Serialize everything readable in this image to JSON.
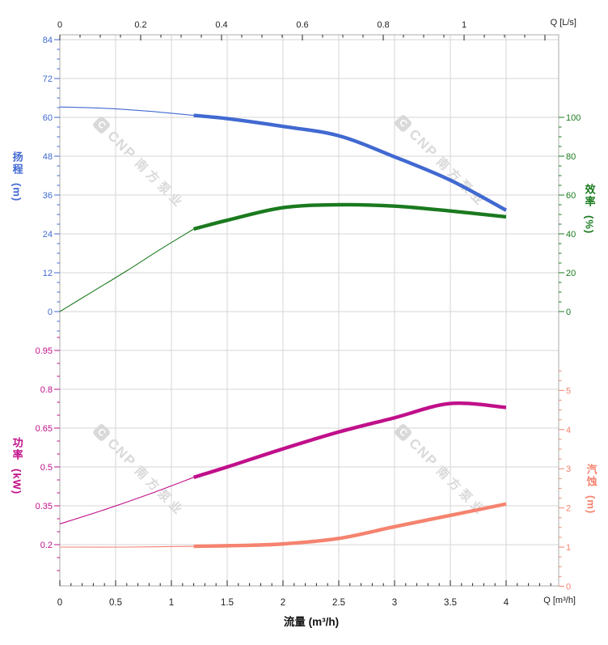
{
  "watermark": {
    "logo_letter": "C",
    "brand": "CNP",
    "company": "南方泵业"
  },
  "colors": {
    "head": "#4169d1",
    "efficiency": "#1a7a1e",
    "power": "#c0108a",
    "npsh": "#f5836f",
    "grid": "#d6d6d6",
    "border": "#ababab",
    "axis_text": "#222222",
    "watermark": "#d9d9d9"
  },
  "axes": {
    "flow_ls": {
      "title": "Q [L/s]",
      "majors": [
        0,
        0.2,
        0.4,
        0.6,
        0.8,
        1,
        1.2
      ],
      "labels": [
        "0",
        "0.2",
        "0.4",
        "0.6",
        "0.8",
        "1"
      ],
      "minor_step": 0.05,
      "minor_range": [
        0,
        1.2
      ]
    },
    "flow_m3h": {
      "title": "Q [m³/h]",
      "caption": "流量 (m³/h)",
      "majors": [
        0,
        0.5,
        1,
        1.5,
        2,
        2.5,
        3,
        3.5,
        4
      ],
      "labels": [
        "0",
        "0.5",
        "1",
        "1.5",
        "2",
        "2.5",
        "3",
        "3.5",
        "4"
      ],
      "minor_step": 0.1,
      "minor_range": [
        0,
        4.4
      ]
    },
    "head": {
      "label": "扬程",
      "unit": "(m)",
      "majors": [
        84,
        72,
        60,
        48,
        36,
        24,
        12,
        0
      ],
      "labels": [
        "84",
        "72",
        "60",
        "48",
        "36",
        "24",
        "12",
        "0"
      ],
      "minor_step": 3,
      "minor_range": [
        -6,
        84
      ]
    },
    "efficiency": {
      "label": "效率",
      "unit": "(%)",
      "majors": [
        100,
        80,
        60,
        40,
        20,
        0
      ],
      "labels": [
        "100",
        "80",
        "60",
        "40",
        "20",
        "0"
      ],
      "minor_step": 5,
      "minor_range": [
        0,
        100
      ]
    },
    "power": {
      "label": "功率",
      "unit": "(kW)",
      "majors": [
        0.95,
        0.8,
        0.65,
        0.5,
        0.35,
        0.2
      ],
      "labels": [
        "0.95",
        "0.8",
        "0.65",
        "0.5",
        "0.35",
        "0.2"
      ],
      "minor_step": 0.05,
      "minor_range": [
        0.1,
        1
      ]
    },
    "npsh": {
      "label": "汽蚀",
      "unit": "(m)",
      "majors": [
        5,
        4,
        3,
        2,
        1,
        0
      ],
      "labels": [
        "5",
        "4",
        "3",
        "2",
        "1",
        "0"
      ],
      "minor_step": 0.25,
      "minor_range": [
        0.25,
        5.5
      ]
    }
  },
  "chart_data": {
    "type": "line",
    "title": "",
    "xlabel": "流量 (m³/h)",
    "x_axis_top": {
      "title": "Q [L/s]",
      "range": [
        0,
        1.234
      ]
    },
    "x_axis_bottom": {
      "title": "Q [m³/h]",
      "range": [
        0,
        4.47
      ]
    },
    "y_axes": {
      "head": {
        "label": "扬程 (m)",
        "range": [
          0,
          84
        ],
        "side": "left"
      },
      "efficiency": {
        "label": "效率 (%)",
        "range": [
          0,
          100
        ],
        "side": "right"
      },
      "power": {
        "label": "功率 (kW)",
        "range": [
          0.2,
          0.95
        ],
        "side": "left"
      },
      "npsh": {
        "label": "汽蚀 (m)",
        "range": [
          0,
          5
        ],
        "side": "right"
      }
    },
    "grid": true,
    "series": [
      {
        "name": "扬程",
        "key": "head",
        "axis": "head",
        "unit": "m",
        "color": "#4169d1",
        "points_thin": [
          [
            0,
            63.2
          ],
          [
            0.4,
            62.8
          ],
          [
            0.8,
            61.9
          ],
          [
            1.2,
            60.6
          ]
        ],
        "points_thick": [
          [
            1.2,
            60.6
          ],
          [
            1.5,
            59.6
          ],
          [
            2,
            57.2
          ],
          [
            2.5,
            54.3
          ],
          [
            3,
            47.8
          ],
          [
            3.5,
            40.6
          ],
          [
            4,
            31.3
          ]
        ]
      },
      {
        "name": "效率",
        "key": "efficiency",
        "axis": "efficiency",
        "unit": "%",
        "color": "#1a7a1e",
        "points_thin": [
          [
            0,
            0
          ],
          [
            0.3,
            10.5
          ],
          [
            0.6,
            21
          ],
          [
            0.9,
            32
          ],
          [
            1.2,
            42.5
          ]
        ],
        "points_thick": [
          [
            1.2,
            42.5
          ],
          [
            1.5,
            47
          ],
          [
            2,
            53.5
          ],
          [
            2.5,
            55
          ],
          [
            3,
            54.3
          ],
          [
            3.5,
            51.8
          ],
          [
            4,
            48.8
          ]
        ]
      },
      {
        "name": "功率",
        "key": "power",
        "axis": "power",
        "unit": "kW",
        "color": "#c0108a",
        "points_thin": [
          [
            0,
            0.28
          ],
          [
            0.4,
            0.335
          ],
          [
            0.8,
            0.395
          ],
          [
            1.2,
            0.46
          ]
        ],
        "points_thick": [
          [
            1.2,
            0.46
          ],
          [
            1.5,
            0.5
          ],
          [
            2,
            0.57
          ],
          [
            2.5,
            0.635
          ],
          [
            3,
            0.69
          ],
          [
            3.5,
            0.745
          ],
          [
            4,
            0.73
          ]
        ]
      },
      {
        "name": "汽蚀",
        "key": "npsh",
        "axis": "npsh",
        "unit": "m",
        "color": "#f5836f",
        "points_thin": [
          [
            0,
            1
          ],
          [
            0.6,
            1
          ],
          [
            1.2,
            1.02
          ]
        ],
        "points_thick": [
          [
            1.2,
            1.02
          ],
          [
            1.6,
            1.04
          ],
          [
            2,
            1.08
          ],
          [
            2.5,
            1.22
          ],
          [
            3,
            1.52
          ],
          [
            3.5,
            1.81
          ],
          [
            4,
            2.1
          ]
        ]
      }
    ]
  }
}
